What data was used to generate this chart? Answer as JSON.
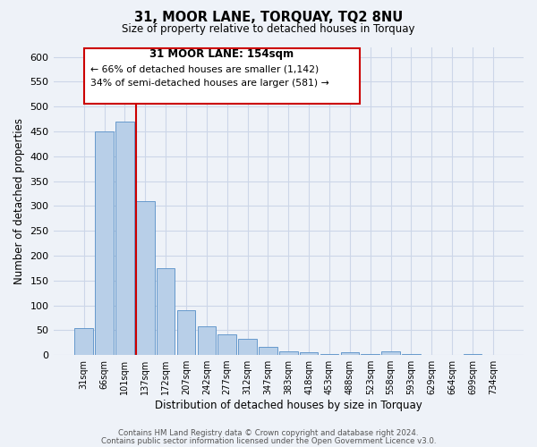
{
  "title": "31, MOOR LANE, TORQUAY, TQ2 8NU",
  "subtitle": "Size of property relative to detached houses in Torquay",
  "xlabel": "Distribution of detached houses by size in Torquay",
  "ylabel": "Number of detached properties",
  "bin_labels": [
    "31sqm",
    "66sqm",
    "101sqm",
    "137sqm",
    "172sqm",
    "207sqm",
    "242sqm",
    "277sqm",
    "312sqm",
    "347sqm",
    "383sqm",
    "418sqm",
    "453sqm",
    "488sqm",
    "523sqm",
    "558sqm",
    "593sqm",
    "629sqm",
    "664sqm",
    "699sqm",
    "734sqm"
  ],
  "bar_values": [
    55,
    450,
    470,
    310,
    175,
    90,
    58,
    42,
    32,
    16,
    8,
    6,
    2,
    5,
    2,
    8,
    2,
    1,
    0,
    2,
    1
  ],
  "bar_color": "#b8cfe8",
  "bar_edge_color": "#6699cc",
  "property_line_color": "#cc0000",
  "annotation_box_color": "#cc0000",
  "annotation_title": "31 MOOR LANE: 154sqm",
  "annotation_line1": "← 66% of detached houses are smaller (1,142)",
  "annotation_line2": "34% of semi-detached houses are larger (581) →",
  "ylim": [
    0,
    620
  ],
  "yticks": [
    0,
    50,
    100,
    150,
    200,
    250,
    300,
    350,
    400,
    450,
    500,
    550,
    600
  ],
  "grid_color": "#ccd6e8",
  "bg_color": "#eef2f8",
  "footer1": "Contains HM Land Registry data © Crown copyright and database right 2024.",
  "footer2": "Contains public sector information licensed under the Open Government Licence v3.0."
}
